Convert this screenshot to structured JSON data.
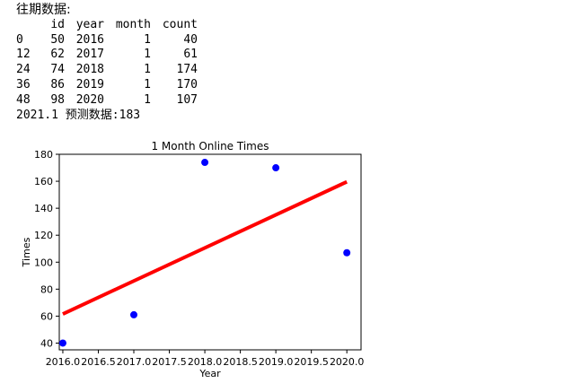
{
  "console": {
    "heading": "往期数据:",
    "columns": [
      "",
      "id",
      "year",
      "month",
      "count"
    ],
    "rows": [
      [
        "0",
        "50",
        "2016",
        "1",
        "40"
      ],
      [
        "12",
        "62",
        "2017",
        "1",
        "61"
      ],
      [
        "24",
        "74",
        "2018",
        "1",
        "174"
      ],
      [
        "36",
        "86",
        "2019",
        "1",
        "170"
      ],
      [
        "48",
        "98",
        "2020",
        "1",
        "107"
      ]
    ],
    "prediction": "2021.1 预测数据:183"
  },
  "chart_data": {
    "type": "scatter",
    "title": "1 Month Online Times",
    "xlabel": "Year",
    "ylabel": "Times",
    "xlim": [
      2015.95,
      2020.2
    ],
    "ylim": [
      35,
      180
    ],
    "xticks": [
      2016.0,
      2016.5,
      2017.0,
      2017.5,
      2018.0,
      2018.5,
      2019.0,
      2019.5,
      2020.0
    ],
    "xtick_labels": [
      "2016.0",
      "2016.5",
      "2017.0",
      "2017.5",
      "2018.0",
      "2018.5",
      "2019.0",
      "2019.5",
      "2020.0"
    ],
    "yticks": [
      40,
      60,
      80,
      100,
      120,
      140,
      160,
      180
    ],
    "ytick_labels": [
      "40",
      "60",
      "80",
      "100",
      "120",
      "140",
      "160",
      "180"
    ],
    "grid": false,
    "points": {
      "x": [
        2016,
        2017,
        2018,
        2019,
        2020
      ],
      "y": [
        40,
        61,
        174,
        170,
        107
      ],
      "color": "#0000ff"
    },
    "fit_line": {
      "x": [
        2016,
        2020
      ],
      "y": [
        61.6,
        159.6
      ],
      "color": "#ff0000"
    }
  }
}
